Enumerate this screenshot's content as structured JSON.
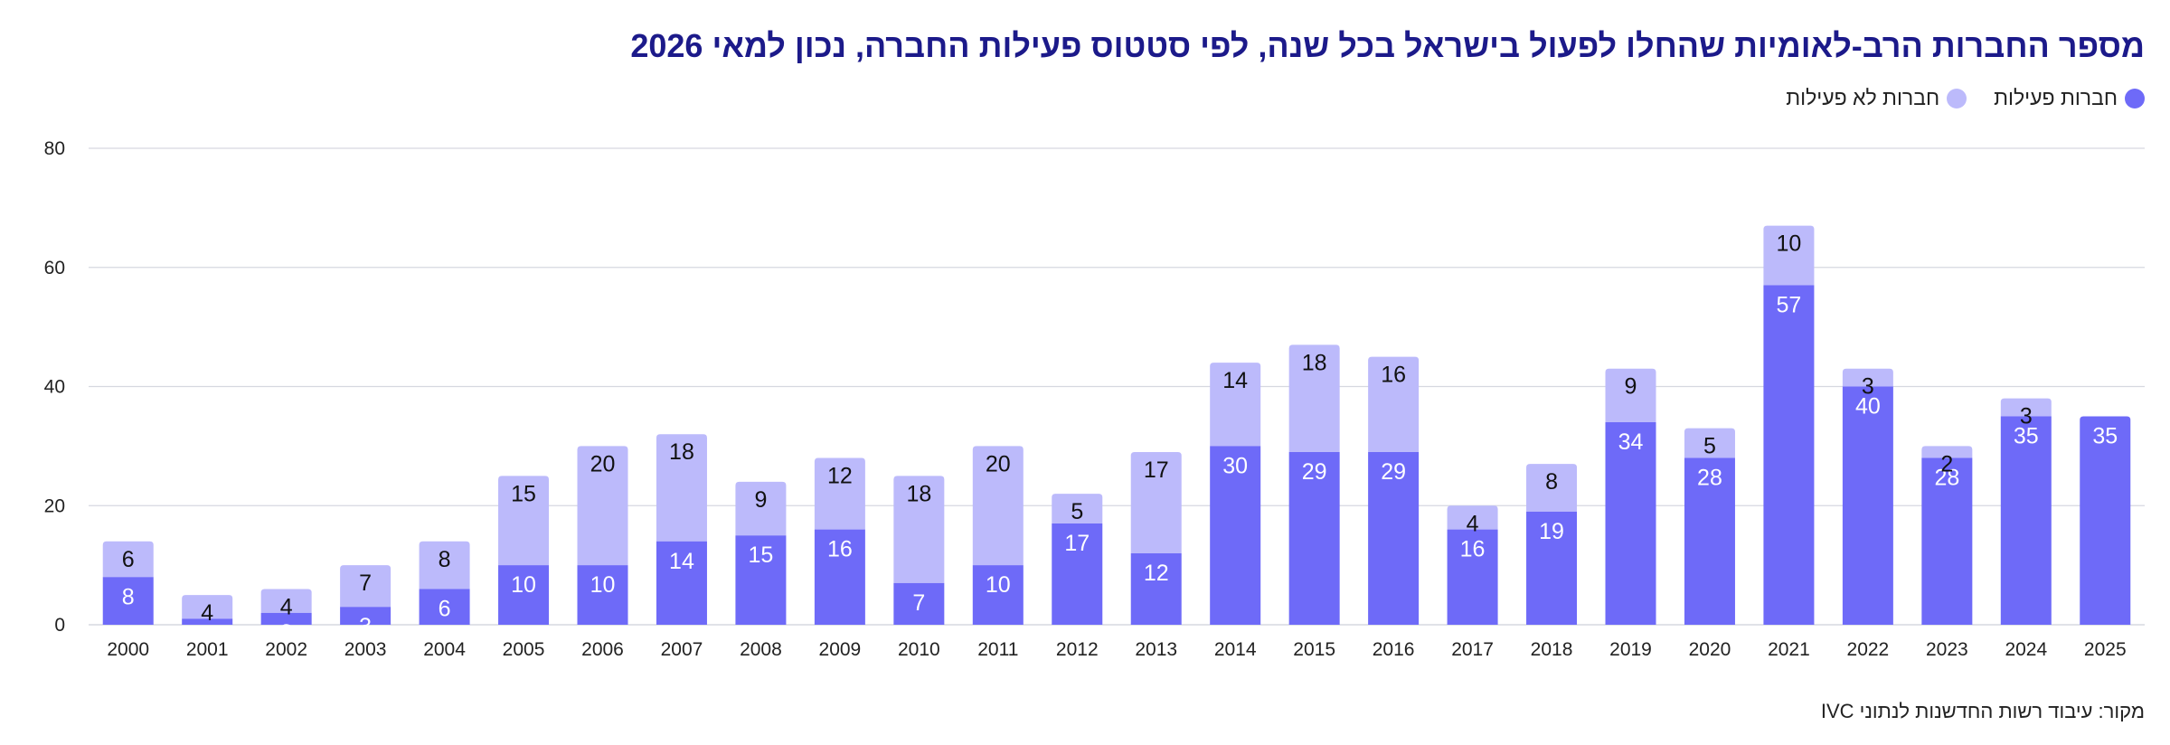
{
  "title": "מספר החברות הרב-לאומיות שהחלו לפעול בישראל בכל שנה, לפי סטטוס פעילות החברה, נכון למאי 2026",
  "source": "מקור: עיבוד רשות החדשנות לנתוני IVC",
  "colors": {
    "active": "#6e6af8",
    "inactive": "#bcbafb",
    "active_label": "#ffffff",
    "inactive_label": "#111111",
    "grid": "#d6d8e0"
  },
  "chart_data": {
    "type": "bar",
    "stacked": true,
    "categories": [
      "2000",
      "2001",
      "2002",
      "2003",
      "2004",
      "2005",
      "2006",
      "2007",
      "2008",
      "2009",
      "2010",
      "2011",
      "2012",
      "2013",
      "2014",
      "2015",
      "2016",
      "2017",
      "2018",
      "2019",
      "2020",
      "2021",
      "2022",
      "2023",
      "2024",
      "2025"
    ],
    "series": [
      {
        "name": "חברות פעילות",
        "values": [
          8,
          1,
          2,
          3,
          6,
          10,
          10,
          14,
          15,
          16,
          7,
          10,
          17,
          12,
          30,
          29,
          29,
          16,
          19,
          34,
          28,
          57,
          40,
          28,
          35,
          35
        ]
      },
      {
        "name": "חברות לא פעילות",
        "values": [
          6,
          4,
          4,
          7,
          8,
          15,
          20,
          18,
          9,
          12,
          18,
          20,
          5,
          17,
          14,
          18,
          16,
          4,
          8,
          9,
          5,
          10,
          3,
          2,
          3,
          0
        ]
      }
    ],
    "title": "מספר החברות הרב-לאומיות שהחלו לפעול בישראל בכל שנה, לפי סטטוס פעילות החברה, נכון למאי 2026",
    "xlabel": "",
    "ylabel": "",
    "ylim": [
      0,
      80
    ],
    "yticks": [
      0,
      20,
      40,
      60,
      80
    ],
    "grid": true,
    "legend": "top-right"
  }
}
